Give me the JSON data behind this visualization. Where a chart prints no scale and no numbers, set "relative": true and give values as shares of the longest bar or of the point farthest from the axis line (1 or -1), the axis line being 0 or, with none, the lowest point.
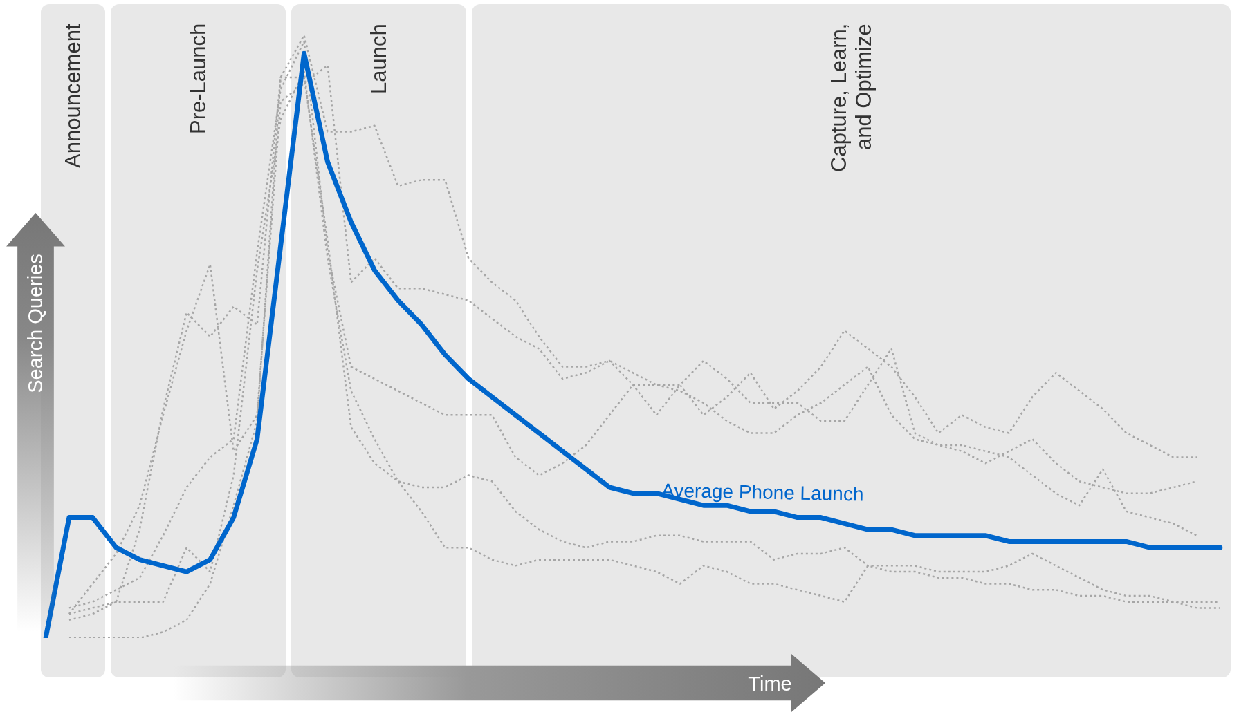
{
  "chart_data": {
    "type": "line",
    "relative": true,
    "xlabel": "Time",
    "ylabel": "Search Queries",
    "legend": false,
    "marker": "none",
    "categories": [
      null,
      null,
      null,
      null,
      null,
      null,
      null,
      null,
      null,
      null,
      null,
      null,
      null,
      null,
      null,
      null,
      null,
      null,
      null,
      null,
      null,
      null,
      null,
      null,
      null,
      null,
      null,
      null,
      null,
      null,
      null,
      null,
      null,
      null,
      null,
      null,
      null,
      null,
      null,
      null,
      null,
      null,
      null,
      null,
      null,
      null,
      null,
      null,
      null,
      null,
      null
    ],
    "annotations": [
      "Announcement",
      "Pre-Launch",
      "Launch",
      "Capture, Learn, and Optimize"
    ],
    "series": [
      {
        "color": "#a6a6a6",
        "line_style": "dotted",
        "values": [
          null,
          0.04,
          0.05,
          0.06,
          0.18,
          0.38,
          0.54,
          0.5,
          0.55,
          0.52,
          0.93,
          1.0,
          0.84,
          0.84,
          0.85,
          0.75,
          0.76,
          0.76,
          0.63,
          0.59,
          0.56,
          0.5,
          0.45,
          0.45,
          0.46,
          0.42,
          0.37,
          0.42,
          0.37,
          0.4,
          0.44,
          0.38,
          0.41,
          0.45,
          0.51,
          0.48,
          0.45,
          0.4,
          0.34,
          0.37,
          0.35,
          0.34,
          0.4,
          0.44,
          0.41,
          0.38,
          0.34,
          0.32,
          0.3,
          0.3,
          null
        ]
      },
      {
        "color": "#a6a6a6",
        "line_style": "dotted",
        "values": [
          null,
          0.04,
          0.09,
          0.14,
          0.22,
          0.37,
          0.51,
          0.62,
          0.31,
          0.37,
          0.89,
          0.92,
          0.95,
          0.59,
          0.63,
          0.58,
          0.58,
          0.57,
          0.56,
          0.53,
          0.5,
          0.48,
          0.43,
          0.44,
          0.46,
          0.44,
          0.42,
          0.42,
          0.46,
          0.43,
          0.39,
          0.39,
          0.39,
          0.36,
          0.36,
          0.42,
          0.48,
          0.34,
          0.32,
          0.31,
          0.29,
          0.31,
          0.33,
          0.29,
          0.26,
          0.25,
          0.24,
          0.24,
          0.25,
          0.26,
          null
        ]
      },
      {
        "color": "#a6a6a6",
        "line_style": "dotted",
        "values": [
          null,
          0.05,
          0.06,
          0.08,
          0.1,
          0.17,
          0.25,
          0.3,
          0.33,
          0.64,
          0.91,
          0.99,
          0.64,
          0.45,
          0.43,
          0.41,
          0.39,
          0.37,
          0.37,
          0.37,
          0.3,
          0.27,
          0.29,
          0.32,
          0.37,
          0.42,
          0.42,
          0.41,
          0.39,
          0.36,
          0.34,
          0.34,
          0.37,
          0.39,
          0.42,
          0.45,
          0.37,
          0.33,
          0.32,
          0.32,
          0.31,
          0.3,
          0.27,
          0.24,
          0.22,
          0.28,
          0.21,
          0.2,
          0.19,
          0.17,
          null
        ]
      },
      {
        "color": "#a6a6a6",
        "line_style": "dotted",
        "values": [
          null,
          0.0,
          0.0,
          0.0,
          0.0,
          0.01,
          0.03,
          0.09,
          0.22,
          0.36,
          0.93,
          0.93,
          0.66,
          0.35,
          0.29,
          0.26,
          0.25,
          0.25,
          0.27,
          0.26,
          0.21,
          0.18,
          0.16,
          0.15,
          0.16,
          0.16,
          0.17,
          0.17,
          0.16,
          0.16,
          0.16,
          0.13,
          0.14,
          0.14,
          0.15,
          0.12,
          0.12,
          0.12,
          0.11,
          0.11,
          0.11,
          0.12,
          0.14,
          0.12,
          0.1,
          0.08,
          0.07,
          0.07,
          0.06,
          0.06,
          0.06
        ]
      },
      {
        "color": "#a6a6a6",
        "line_style": "dotted",
        "values": [
          null,
          0.03,
          0.04,
          0.06,
          0.06,
          0.06,
          0.15,
          0.11,
          0.27,
          0.61,
          0.86,
          0.94,
          0.63,
          0.41,
          0.33,
          0.26,
          0.21,
          0.15,
          0.15,
          0.13,
          0.12,
          0.13,
          0.13,
          0.13,
          0.13,
          0.12,
          0.11,
          0.09,
          0.12,
          0.11,
          0.09,
          0.09,
          0.08,
          0.07,
          0.06,
          0.12,
          0.11,
          0.11,
          0.1,
          0.1,
          0.09,
          0.09,
          0.08,
          0.08,
          0.07,
          0.07,
          0.06,
          0.06,
          0.06,
          0.05,
          0.05
        ]
      },
      {
        "name": "Average Phone Launch",
        "color": "#0066cc",
        "line_style": "solid",
        "values": [
          0.0,
          0.2,
          0.2,
          0.15,
          0.13,
          0.12,
          0.11,
          0.13,
          0.2,
          0.33,
          0.65,
          0.97,
          0.79,
          0.69,
          0.61,
          0.56,
          0.52,
          0.47,
          0.43,
          0.4,
          0.37,
          0.34,
          0.31,
          0.28,
          0.25,
          0.24,
          0.24,
          0.23,
          0.22,
          0.22,
          0.21,
          0.21,
          0.2,
          0.2,
          0.19,
          0.18,
          0.18,
          0.17,
          0.17,
          0.17,
          0.17,
          0.16,
          0.16,
          0.16,
          0.16,
          0.16,
          0.16,
          0.15,
          0.15,
          0.15,
          0.15
        ]
      }
    ]
  }
}
